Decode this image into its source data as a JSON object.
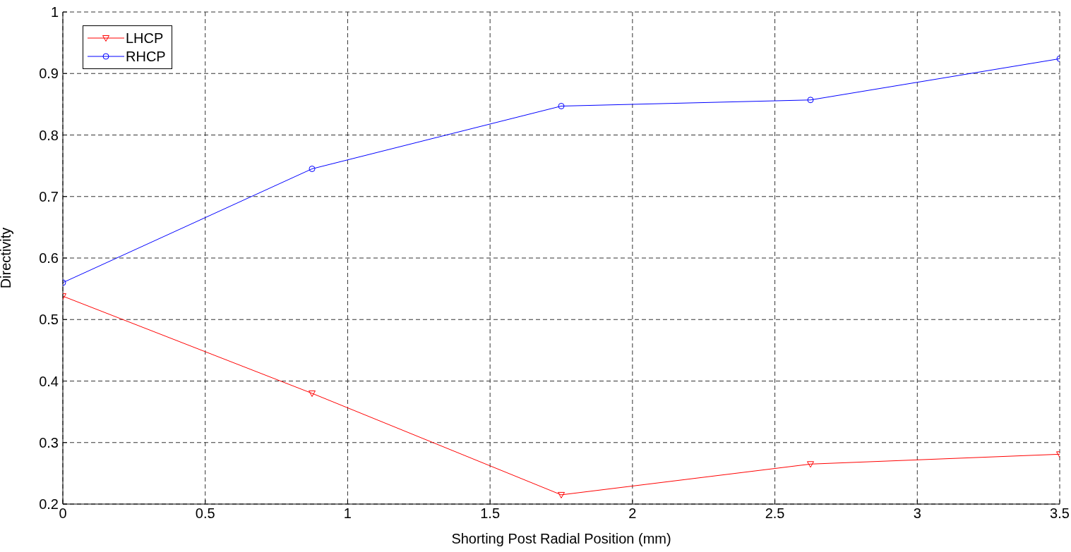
{
  "chart_data": {
    "type": "line",
    "xlabel": "Shorting Post Radial Position (mm)",
    "ylabel": "Directivity",
    "x": [
      0,
      0.875,
      1.75,
      2.625,
      3.5
    ],
    "series": [
      {
        "name": "LHCP",
        "color": "#ff0000",
        "marker": "triangle",
        "values": [
          0.538,
          0.38,
          0.215,
          0.265,
          0.281
        ]
      },
      {
        "name": "RHCP",
        "color": "#0000ff",
        "marker": "circle",
        "values": [
          0.56,
          0.745,
          0.847,
          0.857,
          0.924
        ]
      }
    ],
    "xlim": [
      0,
      3.5
    ],
    "xticks": [
      0,
      0.5,
      1,
      1.5,
      2,
      2.5,
      3,
      3.5
    ],
    "ylim": [
      0.2,
      1
    ],
    "yticks": [
      0.2,
      0.3,
      0.4,
      0.5,
      0.6,
      0.7,
      0.8,
      0.9,
      1
    ],
    "grid": true,
    "legend": "top left",
    "line_style": "solid"
  }
}
